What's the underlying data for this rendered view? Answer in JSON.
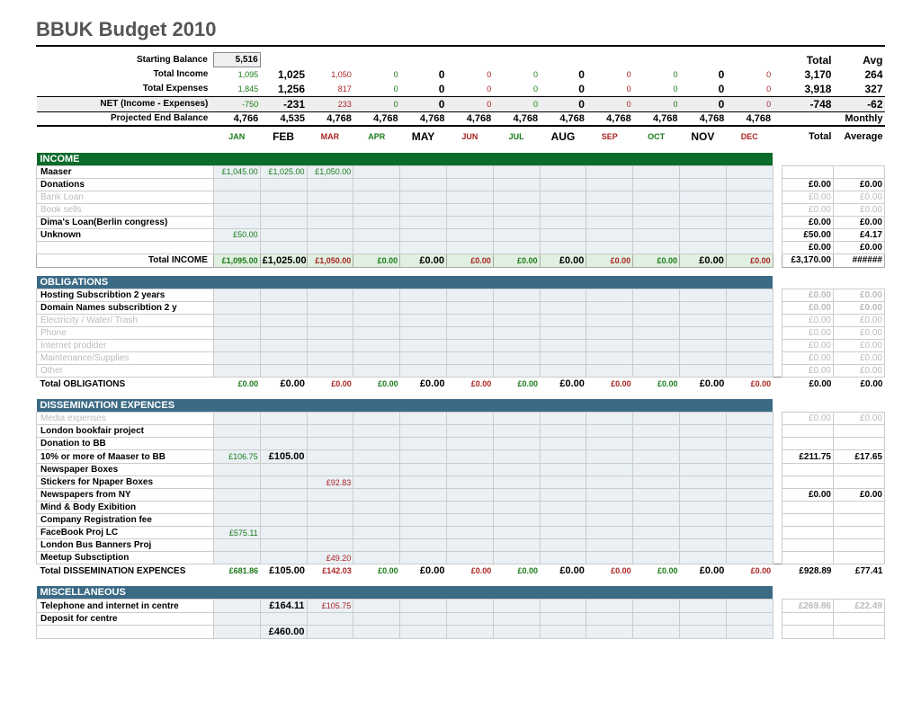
{
  "title": "BBUK Budget 2010",
  "months": [
    "JAN",
    "FEB",
    "MAR",
    "APR",
    "MAY",
    "JUN",
    "JUL",
    "AUG",
    "SEP",
    "OCT",
    "NOV",
    "DEC"
  ],
  "month_sizes": [
    "sm-g",
    "big",
    "sm-r",
    "sm-g",
    "big",
    "sm-r",
    "sm-g",
    "big",
    "sm-r",
    "sm-g",
    "big",
    "sm-r"
  ],
  "summary": {
    "starting_label": "Starting Balance",
    "starting_value": "5,516",
    "income_label": "Total Income",
    "income": {
      "vals": [
        "1,095",
        "1,025",
        "1,050",
        "0",
        "0",
        "0",
        "0",
        "0",
        "0",
        "0",
        "0",
        "0"
      ],
      "colors": [
        "g",
        "b",
        "r",
        "g",
        "b",
        "r",
        "g",
        "b",
        "r",
        "g",
        "b",
        "r"
      ],
      "total": "3,170",
      "avg": "264"
    },
    "expenses_label": "Total Expenses",
    "expenses": {
      "vals": [
        "1,845",
        "1,256",
        "817",
        "0",
        "0",
        "0",
        "0",
        "0",
        "0",
        "0",
        "0",
        "0"
      ],
      "colors": [
        "g",
        "b",
        "r",
        "g",
        "b",
        "r",
        "g",
        "b",
        "r",
        "g",
        "b",
        "r"
      ],
      "total": "3,918",
      "avg": "327"
    },
    "net_label": "NET (Income - Expenses)",
    "net": {
      "vals": [
        "-750",
        "-231",
        "233",
        "0",
        "0",
        "0",
        "0",
        "0",
        "0",
        "0",
        "0",
        "0"
      ],
      "colors": [
        "g",
        "b",
        "r",
        "g",
        "b",
        "r",
        "g",
        "b",
        "r",
        "g",
        "b",
        "r"
      ],
      "total": "-748",
      "avg": "-62"
    },
    "proj_label": "Projected End Balance",
    "proj": {
      "vals": [
        "4,766",
        "4,535",
        "4,768",
        "4,768",
        "4,768",
        "4,768",
        "4,768",
        "4,768",
        "4,768",
        "4,768",
        "4,768",
        "4,768"
      ]
    },
    "total_hdr": "Total",
    "avg_hdr": "Avg",
    "monthly_hdr": "Monthly",
    "total2_hdr": "Total",
    "avg2_hdr": "Average"
  },
  "sections": [
    {
      "name": "INCOME",
      "style": "green",
      "rows": [
        {
          "label": "Maaser",
          "grey": false,
          "vals": [
            "£1,045.00",
            "£1,025.00",
            "£1,050.00",
            "",
            "",
            "",
            "",
            "",
            "",
            "",
            "",
            ""
          ],
          "total": "",
          "avg": ""
        },
        {
          "label": "Donations",
          "grey": false,
          "vals": [
            "",
            "",
            "",
            "",
            "",
            "",
            "",
            "",
            "",
            "",
            "",
            ""
          ],
          "total": "£0.00",
          "avg": "£0.00"
        },
        {
          "label": "Bank Loan",
          "grey": true,
          "vals": [
            "",
            "",
            "",
            "",
            "",
            "",
            "",
            "",
            "",
            "",
            "",
            ""
          ],
          "total": "£0.00",
          "avg": "£0.00"
        },
        {
          "label": "Book sells",
          "grey": true,
          "vals": [
            "",
            "",
            "",
            "",
            "",
            "",
            "",
            "",
            "",
            "",
            "",
            ""
          ],
          "total": "£0.00",
          "avg": "£0.00"
        },
        {
          "label": "Dima's Loan(Berlin congress)",
          "grey": false,
          "vals": [
            "",
            "",
            "",
            "",
            "",
            "",
            "",
            "",
            "",
            "",
            "",
            ""
          ],
          "total": "£0.00",
          "avg": "£0.00"
        },
        {
          "label": "Unknown",
          "grey": false,
          "vals": [
            "£50.00",
            "",
            "",
            "",
            "",
            "",
            "",
            "",
            "",
            "",
            "",
            ""
          ],
          "total": "£50.00",
          "avg": "£4.17"
        },
        {
          "label": "",
          "grey": false,
          "vals": [
            "",
            "",
            "",
            "",
            "",
            "",
            "",
            "",
            "",
            "",
            "",
            ""
          ],
          "total": "£0.00",
          "avg": "£0.00"
        }
      ],
      "total_label": "Total INCOME",
      "total_vals": [
        "£1,095.00",
        "£1,025.00",
        "£1,050.00",
        "£0.00",
        "£0.00",
        "£0.00",
        "£0.00",
        "£0.00",
        "£0.00",
        "£0.00",
        "£0.00",
        "£0.00"
      ],
      "total_colors": [
        "g",
        "b",
        "r",
        "g",
        "b",
        "r",
        "g",
        "b",
        "r",
        "g",
        "b",
        "r"
      ],
      "total_total": "£3,170.00",
      "total_avg": "######",
      "shaded_total": true
    },
    {
      "name": "OBLIGATIONS",
      "style": "blue",
      "rows": [
        {
          "label": "Hosting Subscribtion 2 years",
          "grey": false,
          "vals": [
            "",
            "",
            "",
            "",
            "",
            "",
            "",
            "",
            "",
            "",
            "",
            ""
          ],
          "total": "£0.00",
          "avg": "£0.00",
          "tgrey": true
        },
        {
          "label": "Domain Names subscribtion 2 y",
          "grey": false,
          "vals": [
            "",
            "",
            "",
            "",
            "",
            "",
            "",
            "",
            "",
            "",
            "",
            ""
          ],
          "total": "£0.00",
          "avg": "£0.00",
          "tgrey": true
        },
        {
          "label": "Electricity / Water/ Trash",
          "grey": true,
          "vals": [
            "",
            "",
            "",
            "",
            "",
            "",
            "",
            "",
            "",
            "",
            "",
            ""
          ],
          "total": "£0.00",
          "avg": "£0.00",
          "tgrey": true
        },
        {
          "label": "Phone",
          "grey": true,
          "vals": [
            "",
            "",
            "",
            "",
            "",
            "",
            "",
            "",
            "",
            "",
            "",
            ""
          ],
          "total": "£0.00",
          "avg": "£0.00",
          "tgrey": true
        },
        {
          "label": "Internet prodider",
          "grey": true,
          "vals": [
            "",
            "",
            "",
            "",
            "",
            "",
            "",
            "",
            "",
            "",
            "",
            ""
          ],
          "total": "£0.00",
          "avg": "£0.00",
          "tgrey": true
        },
        {
          "label": "Maintenance/Supplies",
          "grey": true,
          "vals": [
            "",
            "",
            "",
            "",
            "",
            "",
            "",
            "",
            "",
            "",
            "",
            ""
          ],
          "total": "£0.00",
          "avg": "£0.00",
          "tgrey": true
        },
        {
          "label": "Other",
          "grey": true,
          "vals": [
            "",
            "",
            "",
            "",
            "",
            "",
            "",
            "",
            "",
            "",
            "",
            ""
          ],
          "total": "£0.00",
          "avg": "£0.00",
          "tgrey": true
        }
      ],
      "total_label": "Total OBLIGATIONS",
      "total_vals": [
        "£0.00",
        "£0.00",
        "£0.00",
        "£0.00",
        "£0.00",
        "£0.00",
        "£0.00",
        "£0.00",
        "£0.00",
        "£0.00",
        "£0.00",
        "£0.00"
      ],
      "total_colors": [
        "g",
        "b",
        "r",
        "g",
        "b",
        "r",
        "g",
        "b",
        "r",
        "g",
        "b",
        "r"
      ],
      "total_total": "£0.00",
      "total_avg": "£0.00",
      "shaded_total": false
    },
    {
      "name": "DISSEMINATION EXPENCES",
      "style": "blue",
      "rows": [
        {
          "label": "Media expenses",
          "grey": true,
          "vals": [
            "",
            "",
            "",
            "",
            "",
            "",
            "",
            "",
            "",
            "",
            "",
            ""
          ],
          "total": "£0.00",
          "avg": "£0.00",
          "tgrey": true
        },
        {
          "label": "London bookfair project",
          "grey": false,
          "vals": [
            "",
            "",
            "",
            "",
            "",
            "",
            "",
            "",
            "",
            "",
            "",
            ""
          ],
          "total": "",
          "avg": ""
        },
        {
          "label": "Donation to BB",
          "grey": false,
          "vals": [
            "",
            "",
            "",
            "",
            "",
            "",
            "",
            "",
            "",
            "",
            "",
            ""
          ],
          "total": "",
          "avg": ""
        },
        {
          "label": "10% or more of Maaser to BB",
          "grey": false,
          "vals": [
            "£106.75",
            "£105.00",
            "",
            "",
            "",
            "",
            "",
            "",
            "",
            "",
            "",
            ""
          ],
          "vcolors": [
            "g",
            "b"
          ],
          "total": "£211.75",
          "avg": "£17.65"
        },
        {
          "label": "Newspaper Boxes",
          "grey": false,
          "vals": [
            "",
            "",
            "",
            "",
            "",
            "",
            "",
            "",
            "",
            "",
            "",
            ""
          ],
          "total": "",
          "avg": ""
        },
        {
          "label": "Stickers for Npaper Boxes",
          "grey": false,
          "vals": [
            "",
            "",
            "£92.83",
            "",
            "",
            "",
            "",
            "",
            "",
            "",
            "",
            ""
          ],
          "vcolors": [
            "",
            "",
            "r"
          ],
          "total": "",
          "avg": ""
        },
        {
          "label": "Newspapers from NY",
          "grey": false,
          "vals": [
            "",
            "",
            "",
            "",
            "",
            "",
            "",
            "",
            "",
            "",
            "",
            ""
          ],
          "total": "£0.00",
          "avg": "£0.00"
        },
        {
          "label": "Mind & Body Exibition",
          "grey": false,
          "vals": [
            "",
            "",
            "",
            "",
            "",
            "",
            "",
            "",
            "",
            "",
            "",
            ""
          ],
          "total": "",
          "avg": ""
        },
        {
          "label": "Company Registration fee",
          "grey": false,
          "vals": [
            "",
            "",
            "",
            "",
            "",
            "",
            "",
            "",
            "",
            "",
            "",
            ""
          ],
          "total": "",
          "avg": ""
        },
        {
          "label": "FaceBook Proj LC",
          "grey": false,
          "vals": [
            "£575.11",
            "",
            "",
            "",
            "",
            "",
            "",
            "",
            "",
            "",
            "",
            ""
          ],
          "vcolors": [
            "g"
          ],
          "total": "",
          "avg": ""
        },
        {
          "label": "London Bus Banners Proj",
          "grey": false,
          "vals": [
            "",
            "",
            "",
            "",
            "",
            "",
            "",
            "",
            "",
            "",
            "",
            ""
          ],
          "total": "",
          "avg": ""
        },
        {
          "label": "Meetup Subsctiption",
          "grey": false,
          "vals": [
            "",
            "",
            "£49.20",
            "",
            "",
            "",
            "",
            "",
            "",
            "",
            "",
            ""
          ],
          "vcolors": [
            "",
            "",
            "r"
          ],
          "total": "",
          "avg": ""
        }
      ],
      "total_label": "Total DISSEMINATION EXPENCES",
      "total_vals": [
        "£681.86",
        "£105.00",
        "£142.03",
        "£0.00",
        "£0.00",
        "£0.00",
        "£0.00",
        "£0.00",
        "£0.00",
        "£0.00",
        "£0.00",
        "£0.00"
      ],
      "total_colors": [
        "g",
        "b",
        "r",
        "g",
        "b",
        "r",
        "g",
        "b",
        "r",
        "g",
        "b",
        "r"
      ],
      "total_total": "£928.89",
      "total_avg": "£77.41",
      "shaded_total": false,
      "plain_total": true
    },
    {
      "name": "MISCELLANEOUS",
      "style": "blue",
      "rows": [
        {
          "label": "Telephone and internet in centre",
          "grey": false,
          "vals": [
            "",
            "£164.11",
            "£105.75",
            "",
            "",
            "",
            "",
            "",
            "",
            "",
            "",
            ""
          ],
          "vcolors": [
            "",
            "b",
            "r"
          ],
          "total": "£269.86",
          "avg": "£22.49",
          "tgrey": true
        },
        {
          "label": "Deposit for centre",
          "grey": false,
          "vals": [
            "",
            "",
            "",
            "",
            "",
            "",
            "",
            "",
            "",
            "",
            "",
            ""
          ],
          "total": "",
          "avg": ""
        },
        {
          "label": "",
          "grey": false,
          "vals": [
            "",
            "£460.00",
            "",
            "",
            "",
            "",
            "",
            "",
            "",
            "",
            "",
            ""
          ],
          "vcolors": [
            "",
            "b"
          ],
          "total": "",
          "avg": ""
        }
      ],
      "no_total": true
    }
  ]
}
